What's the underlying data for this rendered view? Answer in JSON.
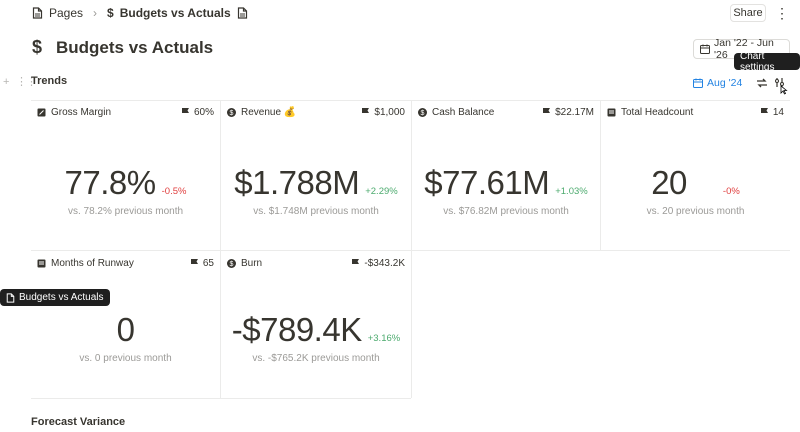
{
  "breadcrumb": {
    "parent": "Pages",
    "current": "Budgets vs Actuals"
  },
  "toolbar": {
    "share_label": "Share",
    "more_label": "⋮"
  },
  "page": {
    "title": "Budgets vs Actuals",
    "date_range": "Jan '22 - Jun '26"
  },
  "tooltips": {
    "chart_settings": "Chart settings",
    "page_link": "Budgets vs Actuals"
  },
  "trends": {
    "title": "Trends",
    "period": "Aug '24"
  },
  "cards": [
    {
      "name": "Gross Margin",
      "target": "60%",
      "value": "77.8%",
      "delta": "-0.5%",
      "delta_sign": "neg",
      "compare": "vs. 78.2% previous month"
    },
    {
      "name": "Revenue 💰",
      "target": "$1,000",
      "value": "$1.788M",
      "delta": "+2.29%",
      "delta_sign": "pos",
      "compare": "vs. $1.748M previous month"
    },
    {
      "name": "Cash Balance",
      "target": "$22.17M",
      "value": "$77.61M",
      "delta": "+1.03%",
      "delta_sign": "pos",
      "compare": "vs. $76.82M previous month"
    },
    {
      "name": "Total Headcount",
      "target": "14",
      "value": "20",
      "delta": "-0%",
      "delta_sign": "neg",
      "compare": "vs. 20 previous month"
    },
    {
      "name": "Months of Runway",
      "target": "65",
      "value": "0",
      "delta": "",
      "delta_sign": "pos",
      "compare": "vs. 0 previous month"
    },
    {
      "name": "Burn",
      "target": "-$343.2K",
      "value": "-$789.4K",
      "delta": "+3.16%",
      "delta_sign": "pos",
      "compare": "vs. -$765.2K previous month"
    }
  ],
  "next_section": {
    "title": "Forecast Variance"
  },
  "colors": {
    "accent_blue": "#2383e2",
    "negative": "#e03e3e",
    "positive": "#4dab6f"
  }
}
